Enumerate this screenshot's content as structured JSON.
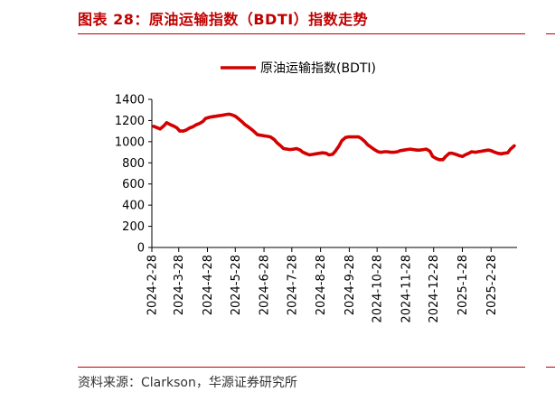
{
  "header": {
    "title": "图表 28：原油运输指数（BDTI）指数走势"
  },
  "footer": {
    "source": "资料来源：Clarkson，华源证券研究所"
  },
  "colors": {
    "accent": "#c00000",
    "series": "#d40000"
  },
  "chart_data": {
    "type": "line",
    "title": "",
    "xlabel": "",
    "ylabel": "",
    "ylim": [
      0,
      1400
    ],
    "yticks": [
      0,
      200,
      400,
      600,
      800,
      1000,
      1200,
      1400
    ],
    "xlim": [
      "2024-02-28",
      "2025-03-28"
    ],
    "xticks": [
      "2024-2-28",
      "2024-3-28",
      "2024-4-28",
      "2024-5-28",
      "2024-6-28",
      "2024-7-28",
      "2024-8-28",
      "2024-9-28",
      "2024-10-28",
      "2024-11-28",
      "2024-12-28",
      "2025-1-28",
      "2025-2-28"
    ],
    "grid": false,
    "legend": "top-center",
    "series": [
      {
        "name": "原油运输指数(BDTI)",
        "x": [
          "2024-03-01",
          "2024-03-05",
          "2024-03-08",
          "2024-03-12",
          "2024-03-15",
          "2024-03-19",
          "2024-03-22",
          "2024-03-26",
          "2024-03-29",
          "2024-04-02",
          "2024-04-05",
          "2024-04-09",
          "2024-04-12",
          "2024-04-16",
          "2024-04-19",
          "2024-04-23",
          "2024-04-26",
          "2024-04-30",
          "2024-05-03",
          "2024-05-07",
          "2024-05-10",
          "2024-05-14",
          "2024-05-17",
          "2024-05-21",
          "2024-05-24",
          "2024-05-28",
          "2024-05-31",
          "2024-06-04",
          "2024-06-07",
          "2024-06-11",
          "2024-06-14",
          "2024-06-18",
          "2024-06-21",
          "2024-06-25",
          "2024-06-28",
          "2024-07-02",
          "2024-07-05",
          "2024-07-09",
          "2024-07-12",
          "2024-07-16",
          "2024-07-19",
          "2024-07-23",
          "2024-07-26",
          "2024-07-30",
          "2024-08-02",
          "2024-08-06",
          "2024-08-09",
          "2024-08-13",
          "2024-08-16",
          "2024-08-20",
          "2024-08-23",
          "2024-08-27",
          "2024-08-30",
          "2024-09-03",
          "2024-09-06",
          "2024-09-10",
          "2024-09-13",
          "2024-09-17",
          "2024-09-20",
          "2024-09-24",
          "2024-09-27",
          "2024-10-01",
          "2024-10-04",
          "2024-10-08",
          "2024-10-11",
          "2024-10-15",
          "2024-10-18",
          "2024-10-22",
          "2024-10-25",
          "2024-10-29",
          "2024-11-01",
          "2024-11-05",
          "2024-11-08",
          "2024-11-12",
          "2024-11-15",
          "2024-11-19",
          "2024-11-22",
          "2024-11-26",
          "2024-11-29",
          "2024-12-03",
          "2024-12-06",
          "2024-12-10",
          "2024-12-13",
          "2024-12-17",
          "2024-12-20",
          "2024-12-24",
          "2024-12-27",
          "2024-12-31",
          "2025-01-03",
          "2025-01-07",
          "2025-01-10",
          "2025-01-14",
          "2025-01-17",
          "2025-01-21",
          "2025-01-24",
          "2025-01-28",
          "2025-01-31",
          "2025-02-04",
          "2025-02-07",
          "2025-02-11",
          "2025-02-14",
          "2025-02-18",
          "2025-02-21",
          "2025-02-25",
          "2025-02-28",
          "2025-03-04",
          "2025-03-07",
          "2025-03-11",
          "2025-03-14",
          "2025-03-18",
          "2025-03-21",
          "2025-03-25"
        ],
        "values": [
          1145,
          1130,
          1120,
          1150,
          1180,
          1160,
          1150,
          1130,
          1100,
          1100,
          1110,
          1130,
          1140,
          1160,
          1170,
          1190,
          1220,
          1230,
          1235,
          1240,
          1245,
          1250,
          1255,
          1260,
          1255,
          1240,
          1220,
          1190,
          1165,
          1140,
          1120,
          1090,
          1065,
          1060,
          1055,
          1050,
          1045,
          1020,
          990,
          960,
          935,
          930,
          925,
          930,
          935,
          920,
          900,
          885,
          875,
          880,
          885,
          890,
          895,
          890,
          875,
          880,
          910,
          960,
          1010,
          1040,
          1045,
          1045,
          1045,
          1045,
          1030,
          1000,
          970,
          945,
          925,
          905,
          900,
          905,
          905,
          900,
          900,
          905,
          915,
          920,
          925,
          930,
          925,
          920,
          920,
          925,
          930,
          910,
          860,
          840,
          830,
          830,
          860,
          890,
          890,
          880,
          870,
          860,
          875,
          890,
          905,
          900,
          905,
          910,
          915,
          920,
          915,
          900,
          890,
          885,
          890,
          895,
          930,
          960
        ]
      }
    ]
  }
}
